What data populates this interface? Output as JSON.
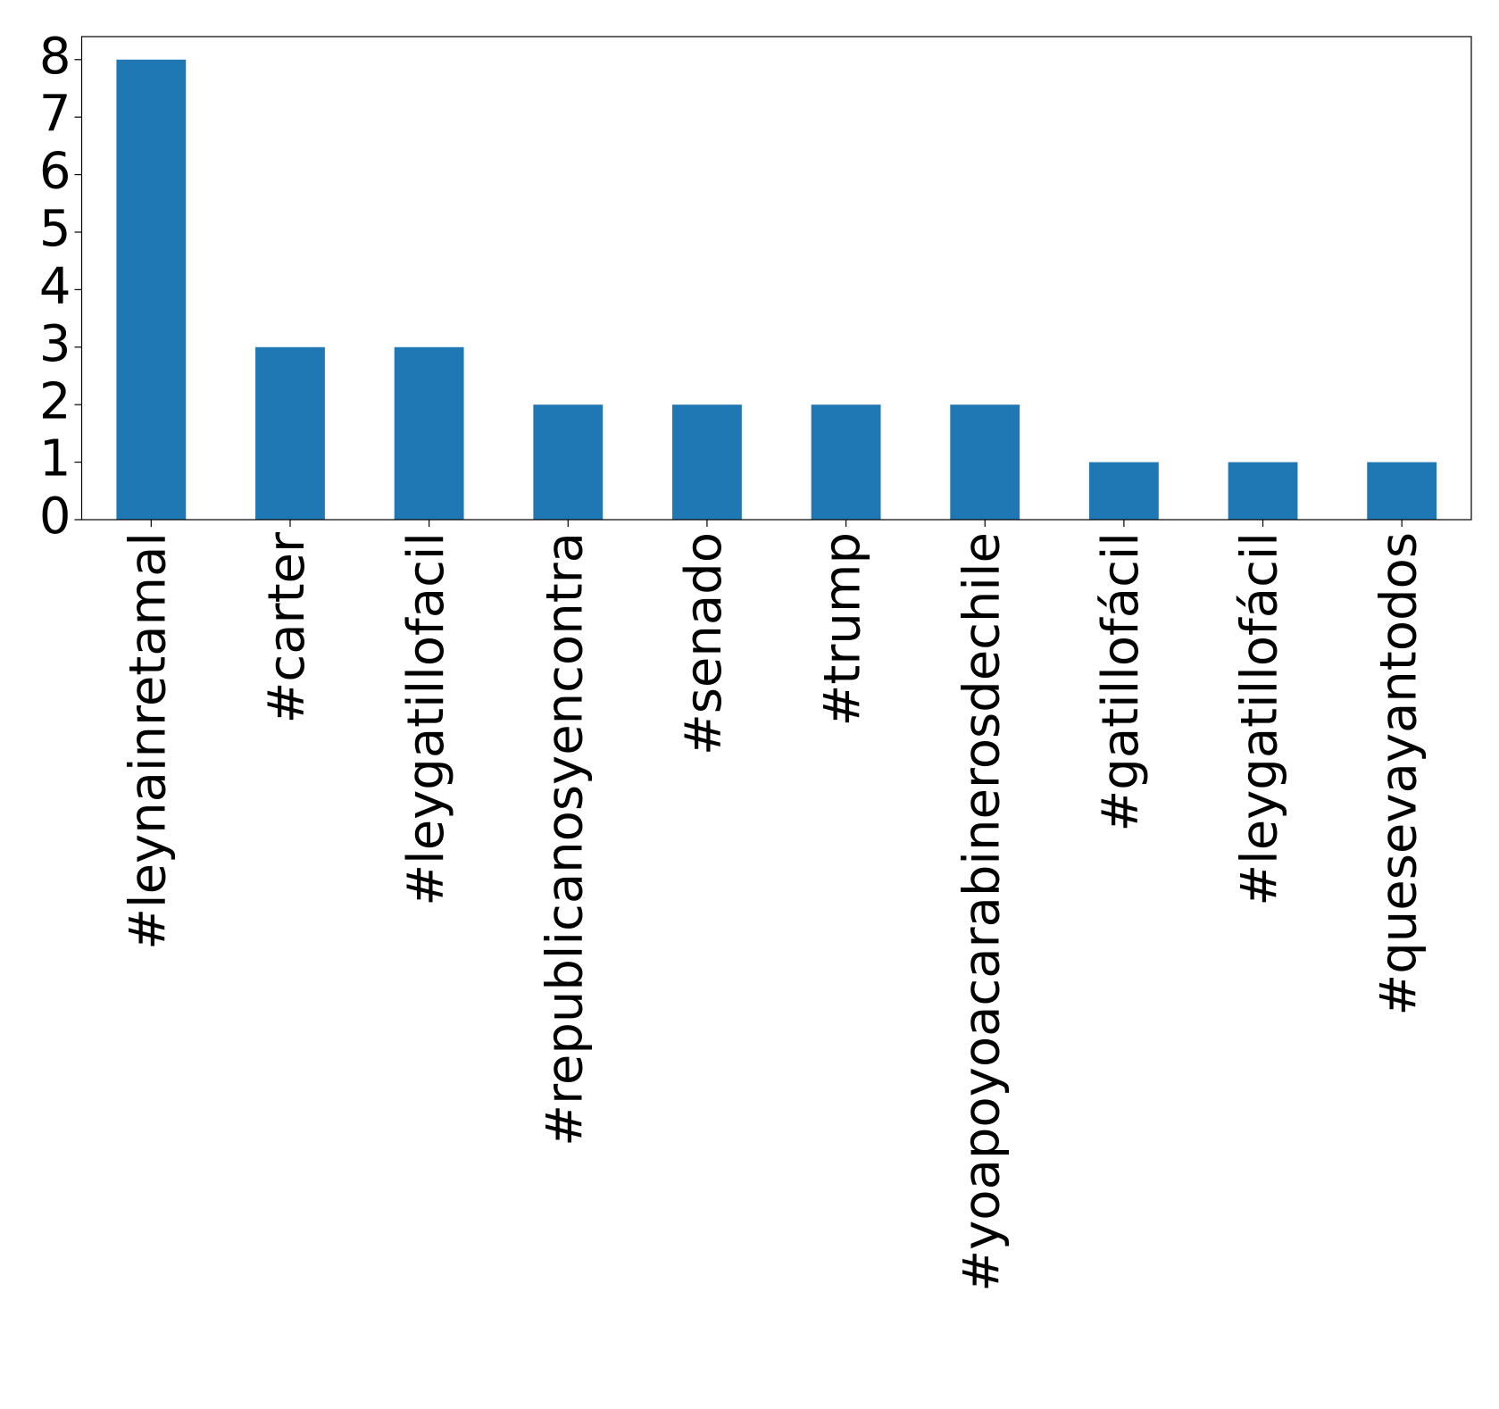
{
  "chart_data": {
    "type": "bar",
    "categories": [
      "#leynainretamal",
      "#carter",
      "#leygatillofacil",
      "#republicanosyencontra",
      "#senado",
      "#trump",
      "#yoapoyoacarabinerosdechile",
      "#gatillofácil",
      "#leygatillofácil",
      "#quesevayantodos"
    ],
    "values": [
      8,
      3,
      3,
      2,
      2,
      2,
      2,
      1,
      1,
      1
    ],
    "color": "#1f77b4",
    "ylim": [
      0,
      8.4
    ],
    "yticks": [
      0,
      1,
      2,
      3,
      4,
      5,
      6,
      7,
      8
    ],
    "grid": false
  }
}
